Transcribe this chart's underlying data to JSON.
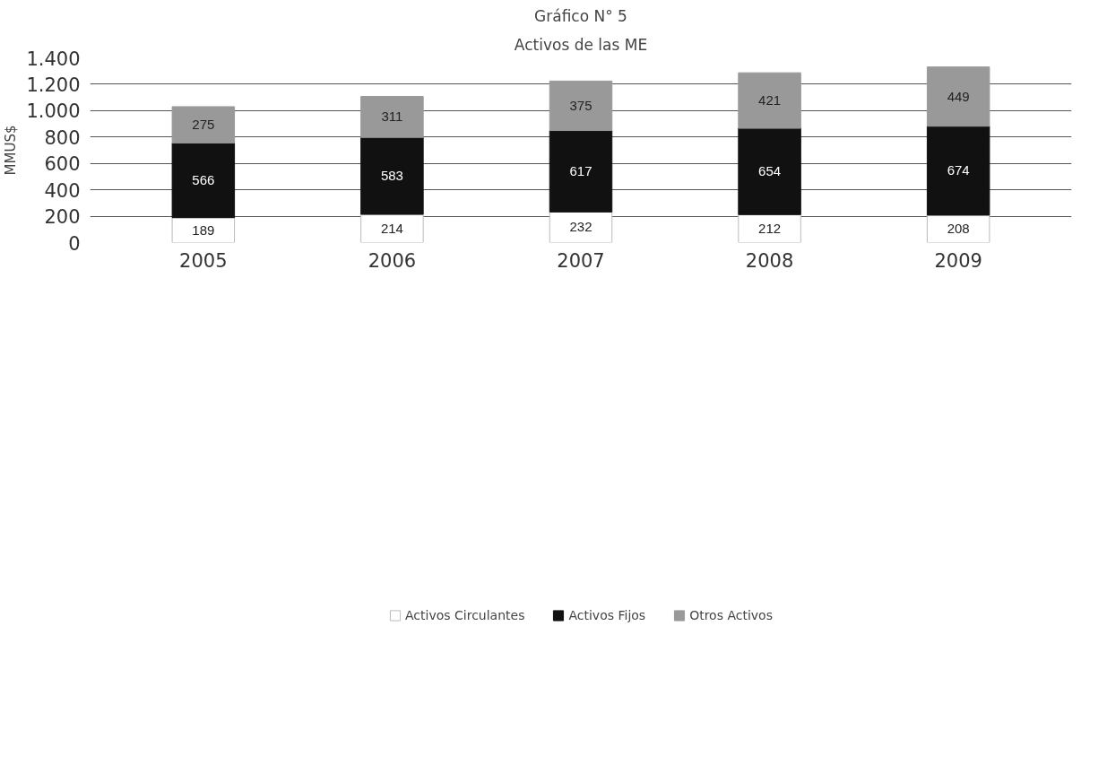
{
  "chart_data": {
    "type": "bar",
    "stacked": true,
    "title": "Gráfico N° 5",
    "subtitle": "Activos de las ME",
    "ylabel": "MMUS$",
    "categories": [
      "2005",
      "2006",
      "2007",
      "2008",
      "2009"
    ],
    "series": [
      {
        "name": "Activos Circulantes",
        "color": "#ffffff",
        "values": [
          189,
          214,
          232,
          212,
          208
        ]
      },
      {
        "name": "Activos Fijos",
        "color": "#111111",
        "values": [
          566,
          583,
          617,
          654,
          674
        ]
      },
      {
        "name": "Otros Activos",
        "color": "#999999",
        "values": [
          275,
          311,
          375,
          421,
          449
        ]
      }
    ],
    "ylim": [
      0,
      1400
    ],
    "yticks": [
      0,
      200,
      400,
      600,
      800,
      {
        "value": 1000,
        "label": "1.000"
      },
      {
        "value": 1200,
        "label": "1.200"
      },
      {
        "value": 1400,
        "label": "1.400"
      }
    ],
    "grid": "y",
    "legend": "bottom",
    "data_labels": true
  }
}
